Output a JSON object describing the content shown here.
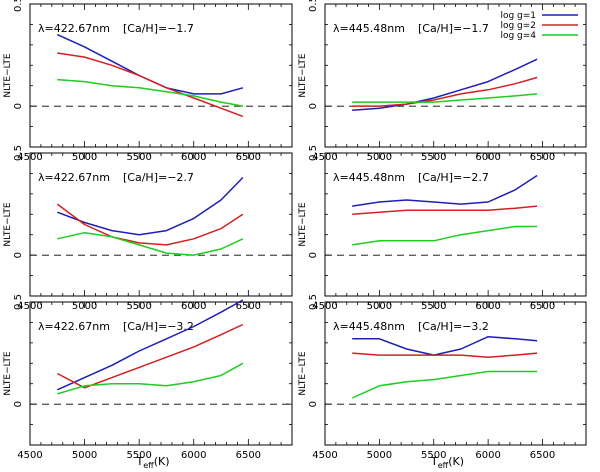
{
  "chart_data": [
    {
      "type": "line",
      "title_lambda": "λ=422.67nm",
      "title_metal": "[Ca/H]=−1.7",
      "ylabel": "NLTE−LTE",
      "xlim": [
        4500,
        6900
      ],
      "ylim": [
        -0.2,
        0.5
      ],
      "yticks": [
        0,
        0.5
      ],
      "ytick_labels": [
        "0",
        "0.5"
      ],
      "xticks": [
        4500,
        5000,
        5500,
        6000,
        6500
      ],
      "xtick_labels": [
        "4500",
        "5000",
        "5500",
        "6000",
        "6500"
      ],
      "zero_line": true,
      "series": [
        {
          "name": "log g=1",
          "color": "#1f1fb8",
          "x": [
            4750,
            5000,
            5250,
            5500,
            5750,
            6000,
            6250,
            6450
          ],
          "y": [
            0.35,
            0.29,
            0.22,
            0.15,
            0.09,
            0.06,
            0.06,
            0.09
          ]
        },
        {
          "name": "log g=2",
          "color": "#d42020",
          "x": [
            4750,
            5000,
            5250,
            5500,
            5750,
            6000,
            6250,
            6450
          ],
          "y": [
            0.26,
            0.24,
            0.2,
            0.15,
            0.09,
            0.04,
            -0.01,
            -0.05
          ]
        },
        {
          "name": "log g=4",
          "color": "#1fcc1f",
          "x": [
            4750,
            5000,
            5250,
            5500,
            5750,
            6000,
            6250,
            6450
          ],
          "y": [
            0.13,
            0.12,
            0.1,
            0.09,
            0.07,
            0.05,
            0.02,
            0.0
          ]
        }
      ]
    },
    {
      "type": "line",
      "title_lambda": "λ=445.48nm",
      "title_metal": "[Ca/H]=−1.7",
      "ylabel": "NLTE−LTE",
      "xlim": [
        4500,
        6900
      ],
      "ylim": [
        -0.2,
        0.5
      ],
      "yticks": [
        0,
        0.5
      ],
      "ytick_labels": [
        "0",
        "0.5"
      ],
      "xticks": [
        4500,
        5000,
        5500,
        6000,
        6500
      ],
      "xtick_labels": [
        "4500",
        "5000",
        "5500",
        "6000",
        "6500"
      ],
      "zero_line": true,
      "series": [
        {
          "name": "log g=1",
          "color": "#1f1fb8",
          "x": [
            4750,
            5000,
            5250,
            5500,
            5750,
            6000,
            6250,
            6450
          ],
          "y": [
            -0.02,
            -0.01,
            0.01,
            0.04,
            0.08,
            0.12,
            0.18,
            0.23
          ]
        },
        {
          "name": "log g=2",
          "color": "#d42020",
          "x": [
            4750,
            5000,
            5250,
            5500,
            5750,
            6000,
            6250,
            6450
          ],
          "y": [
            0.0,
            0.0,
            0.01,
            0.03,
            0.06,
            0.08,
            0.11,
            0.14
          ]
        },
        {
          "name": "log g=4",
          "color": "#1fcc1f",
          "x": [
            4750,
            5000,
            5250,
            5500,
            5750,
            6000,
            6250,
            6450
          ],
          "y": [
            0.02,
            0.02,
            0.02,
            0.02,
            0.03,
            0.04,
            0.05,
            0.06
          ]
        }
      ],
      "legend": {
        "placement": "top-right",
        "entries": [
          "log g=1",
          "log g=2",
          "log g=4"
        ]
      }
    },
    {
      "type": "line",
      "title_lambda": "λ=422.67nm",
      "title_metal": "[Ca/H]=−2.7",
      "ylabel": "NLTE−LTE",
      "xlim": [
        4500,
        6900
      ],
      "ylim": [
        -0.2,
        0.5
      ],
      "yticks": [
        0,
        0.5
      ],
      "ytick_labels": [
        "0",
        "0.5"
      ],
      "xticks": [
        4500,
        5000,
        5500,
        6000,
        6500
      ],
      "xtick_labels": [
        "4500",
        "5000",
        "5500",
        "6000",
        "6500"
      ],
      "zero_line": true,
      "series": [
        {
          "name": "log g=1",
          "color": "#1f1fb8",
          "x": [
            4750,
            5000,
            5250,
            5500,
            5750,
            6000,
            6250,
            6450
          ],
          "y": [
            0.21,
            0.16,
            0.12,
            0.1,
            0.12,
            0.18,
            0.27,
            0.38
          ]
        },
        {
          "name": "log g=2",
          "color": "#d42020",
          "x": [
            4750,
            5000,
            5250,
            5500,
            5750,
            6000,
            6250,
            6450
          ],
          "y": [
            0.25,
            0.15,
            0.09,
            0.06,
            0.05,
            0.08,
            0.13,
            0.2
          ]
        },
        {
          "name": "log g=4",
          "color": "#1fcc1f",
          "x": [
            4750,
            5000,
            5250,
            5500,
            5750,
            6000,
            6250,
            6450
          ],
          "y": [
            0.08,
            0.11,
            0.09,
            0.05,
            0.01,
            0.0,
            0.03,
            0.08
          ]
        }
      ]
    },
    {
      "type": "line",
      "title_lambda": "λ=445.48nm",
      "title_metal": "[Ca/H]=−2.7",
      "ylabel": "NLTE−LTE",
      "xlim": [
        4500,
        6900
      ],
      "ylim": [
        -0.2,
        0.5
      ],
      "yticks": [
        0,
        0.5
      ],
      "ytick_labels": [
        "0",
        "0.5"
      ],
      "xticks": [
        4500,
        5000,
        5500,
        6000,
        6500
      ],
      "xtick_labels": [
        "4500",
        "5000",
        "5500",
        "6000",
        "6500"
      ],
      "zero_line": true,
      "series": [
        {
          "name": "log g=1",
          "color": "#1f1fb8",
          "x": [
            4750,
            5000,
            5250,
            5500,
            5750,
            6000,
            6250,
            6450
          ],
          "y": [
            0.24,
            0.26,
            0.27,
            0.26,
            0.25,
            0.26,
            0.32,
            0.39
          ]
        },
        {
          "name": "log g=2",
          "color": "#d42020",
          "x": [
            4750,
            5000,
            5250,
            5500,
            5750,
            6000,
            6250,
            6450
          ],
          "y": [
            0.2,
            0.21,
            0.22,
            0.22,
            0.22,
            0.22,
            0.23,
            0.24
          ]
        },
        {
          "name": "log g=4",
          "color": "#1fcc1f",
          "x": [
            4750,
            5000,
            5250,
            5500,
            5750,
            6000,
            6250,
            6450
          ],
          "y": [
            0.05,
            0.07,
            0.07,
            0.07,
            0.1,
            0.12,
            0.14,
            0.14
          ]
        }
      ]
    },
    {
      "type": "line",
      "title_lambda": "λ=422.67nm",
      "title_metal": "[Ca/H]=−3.2",
      "ylabel": "NLTE−LTE",
      "xlim": [
        4500,
        6900
      ],
      "ylim": [
        -0.2,
        0.5
      ],
      "yticks": [
        0,
        0.5
      ],
      "ytick_labels": [
        "0",
        "0.5"
      ],
      "xticks": [
        4500,
        5000,
        5500,
        6000,
        6500
      ],
      "xtick_labels": [
        "4500",
        "5000",
        "5500",
        "6000",
        "6500"
      ],
      "zero_line": true,
      "series": [
        {
          "name": "log g=1",
          "color": "#1f1fb8",
          "x": [
            4750,
            5000,
            5250,
            5500,
            5750,
            6000,
            6250,
            6450
          ],
          "y": [
            0.07,
            0.13,
            0.19,
            0.26,
            0.32,
            0.38,
            0.45,
            0.51
          ]
        },
        {
          "name": "log g=2",
          "color": "#d42020",
          "x": [
            4750,
            5000,
            5250,
            5500,
            5750,
            6000,
            6250,
            6450
          ],
          "y": [
            0.15,
            0.08,
            0.13,
            0.18,
            0.23,
            0.28,
            0.34,
            0.39
          ]
        },
        {
          "name": "log g=4",
          "color": "#1fcc1f",
          "x": [
            4750,
            5000,
            5250,
            5500,
            5750,
            6000,
            6250,
            6450
          ],
          "y": [
            0.05,
            0.09,
            0.1,
            0.1,
            0.09,
            0.11,
            0.14,
            0.2
          ]
        }
      ]
    },
    {
      "type": "line",
      "title_lambda": "λ=445.48nm",
      "title_metal": "[Ca/H]=−3.2",
      "ylabel": "NLTE−LTE",
      "xlim": [
        4500,
        6900
      ],
      "ylim": [
        -0.2,
        0.5
      ],
      "yticks": [
        0,
        0.5
      ],
      "ytick_labels": [
        "0",
        "0.5"
      ],
      "xticks": [
        4500,
        5000,
        5500,
        6000,
        6500
      ],
      "xtick_labels": [
        "4500",
        "5000",
        "5500",
        "6000",
        "6500"
      ],
      "zero_line": true,
      "series": [
        {
          "name": "log g=1",
          "color": "#1f1fb8",
          "x": [
            4750,
            5000,
            5250,
            5500,
            5750,
            6000,
            6250,
            6450
          ],
          "y": [
            0.32,
            0.32,
            0.27,
            0.24,
            0.27,
            0.33,
            0.32,
            0.31
          ]
        },
        {
          "name": "log g=2",
          "color": "#d42020",
          "x": [
            4750,
            5000,
            5250,
            5500,
            5750,
            6000,
            6250,
            6450
          ],
          "y": [
            0.25,
            0.24,
            0.24,
            0.24,
            0.24,
            0.23,
            0.24,
            0.25
          ]
        },
        {
          "name": "log g=4",
          "color": "#1fcc1f",
          "x": [
            4750,
            5000,
            5250,
            5500,
            5750,
            6000,
            6250,
            6450
          ],
          "y": [
            0.03,
            0.09,
            0.11,
            0.12,
            0.14,
            0.16,
            0.16,
            0.16
          ]
        }
      ]
    }
  ],
  "xlabel": {
    "main": "T",
    "sub": "eff",
    "unit": "(K)"
  },
  "colors": {
    "zero_line": "#000000",
    "frame": "#000000"
  }
}
